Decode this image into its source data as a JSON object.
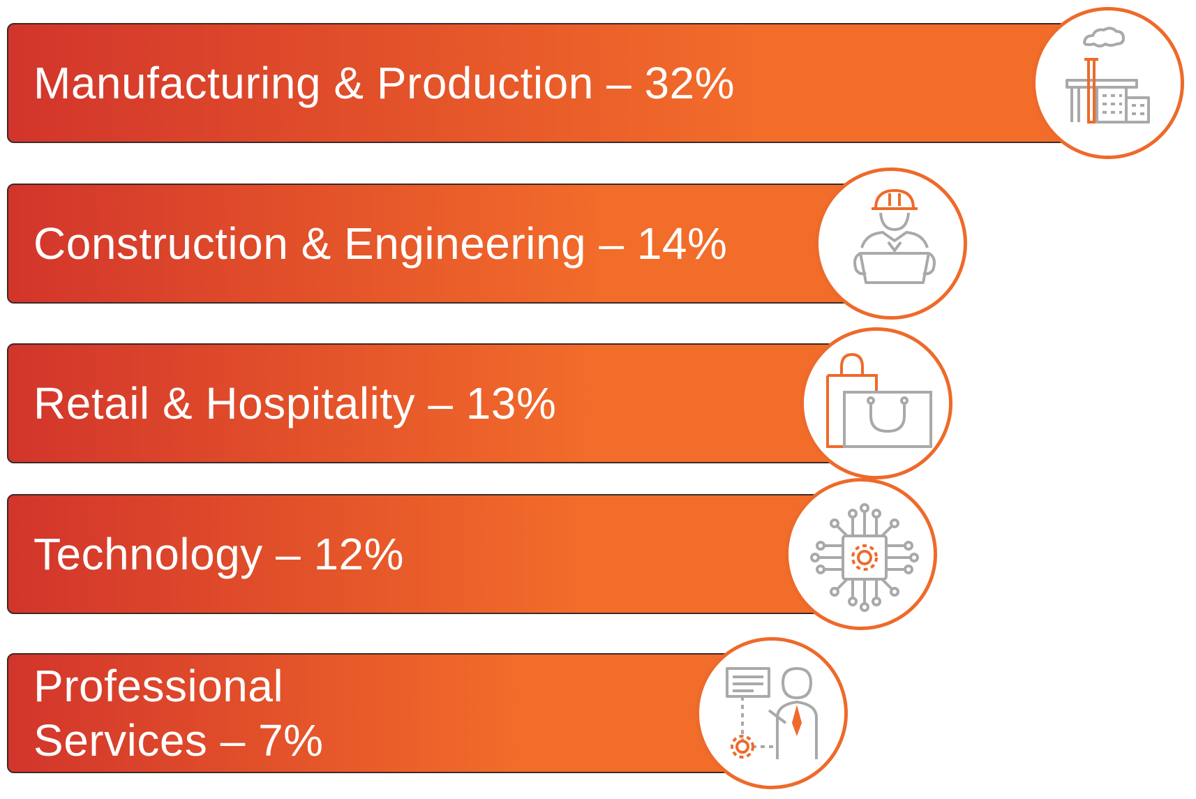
{
  "colors": {
    "bar_start": "#d2352b",
    "bar_end": "#f26c2a",
    "accent": "#ee6a2a",
    "icon_gray": "#a9a9a9",
    "label": "#ffffff"
  },
  "chart_data": {
    "type": "bar",
    "orientation": "horizontal",
    "categories": [
      "Manufacturing & Production",
      "Construction & Engineering",
      "Retail & Hospitality",
      "Technology",
      "Professional Services"
    ],
    "values": [
      32,
      14,
      13,
      12,
      7
    ],
    "unit": "%",
    "labels": [
      "Manufacturing & Production – 32%",
      "Construction & Engineering – 14%",
      "Retail & Hospitality – 13%",
      "Technology – 12%",
      "Professional Services – 7%"
    ],
    "icons": [
      "factory-icon",
      "engineer-icon",
      "shopping-bags-icon",
      "chip-icon",
      "presenter-icon"
    ],
    "grid": false,
    "legend": "none"
  }
}
